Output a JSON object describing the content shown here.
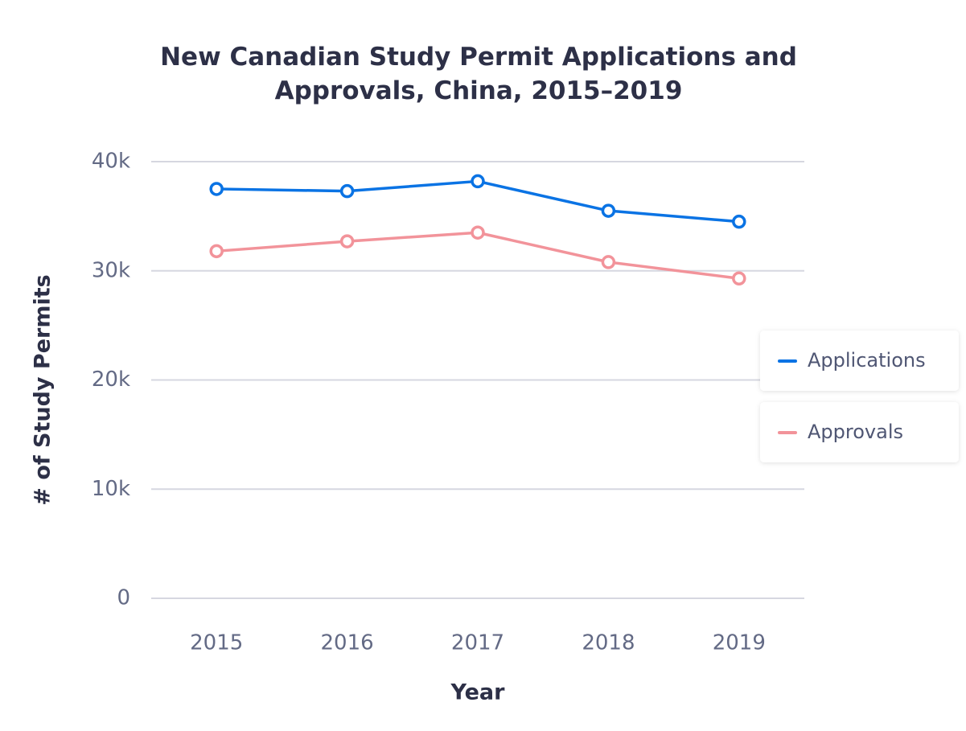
{
  "chart_data": {
    "type": "line",
    "title": "New Canadian Study Permit Applications and Approvals, China, 2015–2019",
    "x_label": "Year",
    "y_label": "# of Study Permits",
    "categories": [
      "2015",
      "2016",
      "2017",
      "2018",
      "2019"
    ],
    "series": [
      {
        "name": "Applications",
        "color": "#0a73e4",
        "values": [
          37500,
          37300,
          38200,
          35500,
          34500
        ]
      },
      {
        "name": "Approvals",
        "color": "#f2939a",
        "values": [
          31800,
          32700,
          33500,
          30800,
          29300
        ]
      }
    ],
    "ylim": [
      0,
      40000
    ],
    "yticks": [
      0,
      {
        "value": 10000,
        "label": "10k"
      },
      {
        "value": 20000,
        "label": "20k"
      },
      {
        "value": 30000,
        "label": "30k"
      },
      {
        "value": 40000,
        "label": "40k"
      }
    ],
    "grid": true,
    "legend": "right"
  }
}
